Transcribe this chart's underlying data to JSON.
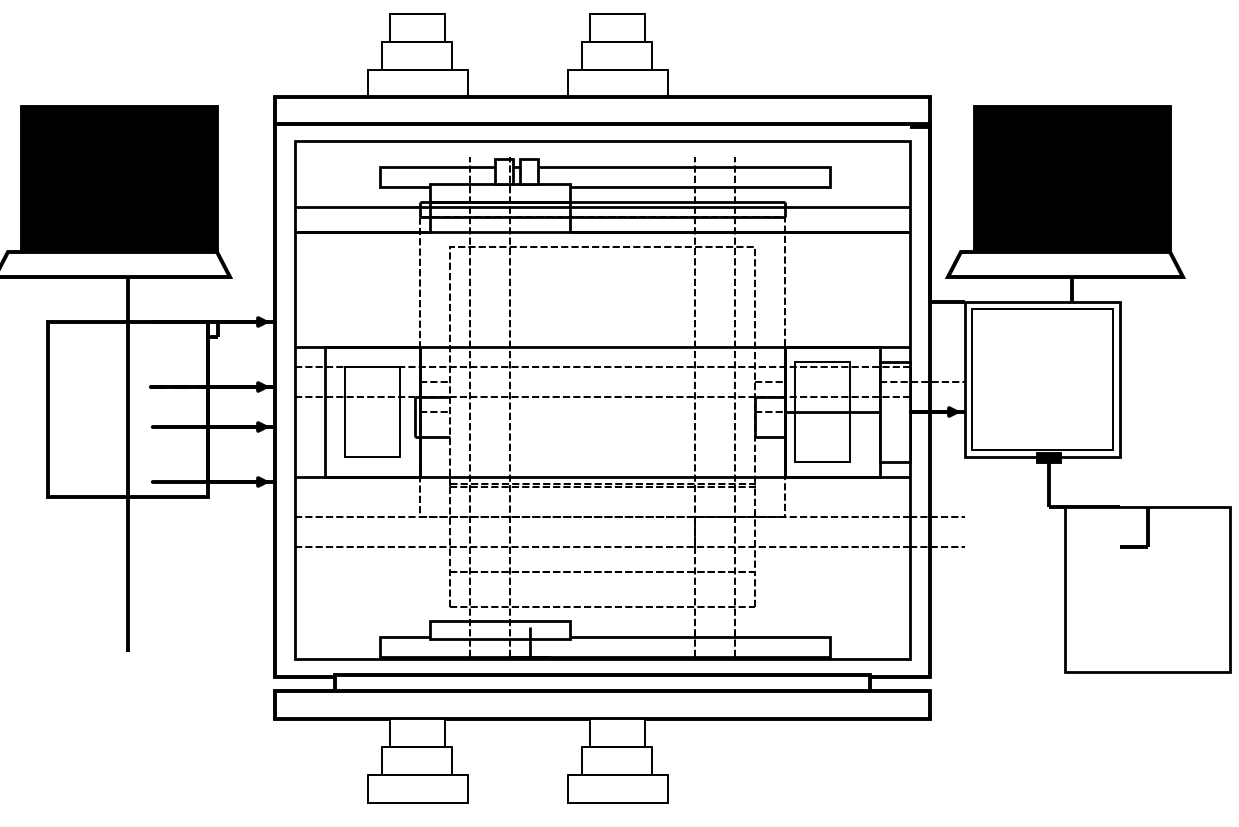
{
  "bg": "#ffffff",
  "lc": "#000000",
  "lwT": 2.8,
  "lwM": 2.0,
  "lwN": 1.4,
  "figw": 12.39,
  "figh": 8.28,
  "dpi": 100
}
